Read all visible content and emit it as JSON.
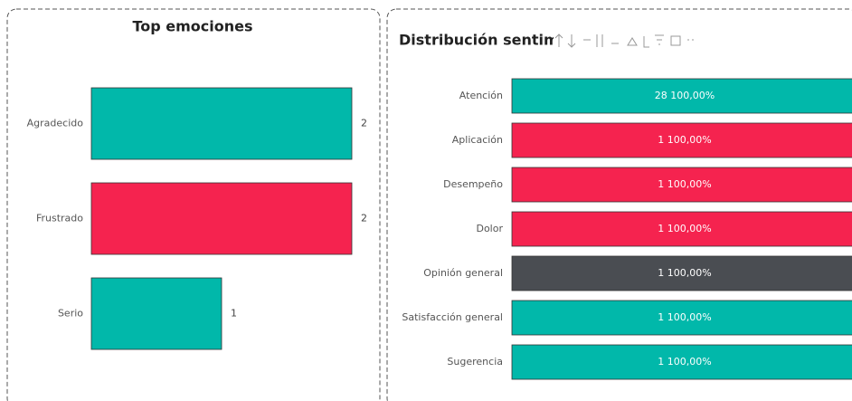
{
  "chart_data": [
    {
      "type": "hbar",
      "title": "Top emociones",
      "categories": [
        "Agradecido",
        "Frustrado",
        "Serio"
      ],
      "values": [
        2,
        2,
        1
      ],
      "colors": [
        "#01b8aa",
        "#f5234f",
        "#01b8aa"
      ],
      "xlim": [
        0,
        2
      ]
    },
    {
      "type": "hbar100",
      "title": "Distribución sentimientos por",
      "categories": [
        "Atención",
        "Aplicación",
        "Desempeño",
        "Dolor",
        "Opinión general",
        "Satisfacción general",
        "Sugerencia"
      ],
      "values": [
        28,
        1,
        1,
        1,
        1,
        1,
        1
      ],
      "percents": [
        100,
        100,
        100,
        100,
        100,
        100,
        100
      ],
      "value_labels": [
        "28 100,00%",
        "1 100,00%",
        "1 100,00%",
        "1 100,00%",
        "1 100,00%",
        "1 100,00%",
        "1 100,00%"
      ],
      "colors": [
        "#01b8aa",
        "#f5234f",
        "#f5234f",
        "#f5234f",
        "#4a4d52",
        "#01b8aa",
        "#01b8aa"
      ],
      "xlim": [
        0,
        100
      ]
    }
  ]
}
